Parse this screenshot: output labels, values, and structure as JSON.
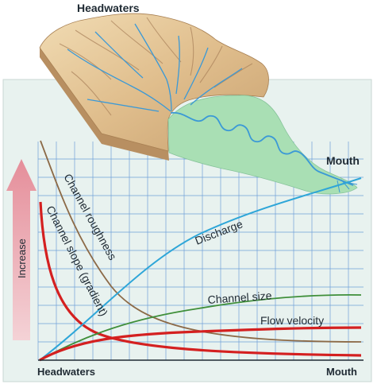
{
  "labels": {
    "headwaters_top": "Headwaters",
    "mouth_top": "Mouth",
    "axis_increase": "Increase",
    "axis_headwaters": "Headwaters",
    "axis_mouth": "Mouth"
  },
  "curves": [
    {
      "label": "Channel roughness",
      "color": "#8c6a47"
    },
    {
      "label": "Channel slope (gradient)",
      "color": "#d42020"
    },
    {
      "label": "Discharge",
      "color": "#2ea6d8"
    },
    {
      "label": "Channel size",
      "color": "#3f8f3a"
    },
    {
      "label": "Flow velocity",
      "color": "#d42020"
    }
  ],
  "colors": {
    "panel": "#e8f2ef",
    "grid": "#6fa0d8",
    "arrow": "#e8a3ad",
    "terrain": "#e3c999",
    "floodplain": "#a9dfb4",
    "river": "#3b99d6"
  }
}
